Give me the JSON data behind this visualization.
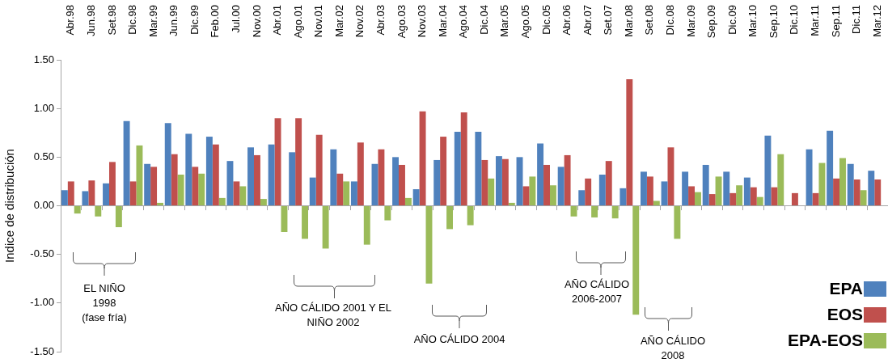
{
  "chart_data": {
    "type": "bar",
    "ylabel": "Indice de distribución",
    "categories": [
      "Abr.98",
      "Jun.98",
      "Set.98",
      "Dic.98",
      "Mar.99",
      "Jun.99",
      "Dic.99",
      "Feb.00",
      "Jul.00",
      "Nov.00",
      "Abr.01",
      "Ago.01",
      "Nov.01",
      "Mar.02",
      "Nov.02",
      "Abr.03",
      "Ago.03",
      "Nov.03",
      "Mar.04",
      "Ago.04",
      "Dic.04",
      "Mar.05",
      "Ago.05",
      "Dic.05",
      "Abr.06",
      "Abr.07",
      "Set.07",
      "Mar.08",
      "Set.08",
      "DIc.08",
      "Mar.09",
      "Sep.09",
      "Dic.09",
      "Mar.10",
      "Sep.10",
      "Dic.10",
      "Mar.11",
      "Sep.11",
      "Dic.11",
      "Mar.12"
    ],
    "series": [
      {
        "name": "EPA",
        "color": "#4f81bd",
        "values": [
          0.16,
          0.15,
          0.23,
          0.87,
          0.43,
          0.85,
          0.74,
          0.71,
          0.46,
          0.6,
          0.63,
          0.55,
          0.29,
          0.58,
          0.25,
          0.43,
          0.5,
          0.17,
          0.47,
          0.76,
          0.76,
          0.51,
          0.5,
          0.64,
          0.4,
          0.16,
          0.32,
          0.18,
          0.35,
          0.25,
          0.35,
          0.42,
          0.35,
          0.29,
          0.72,
          null,
          0.58,
          0.77,
          0.43,
          0.36
        ]
      },
      {
        "name": "EOS",
        "color": "#c0504d",
        "values": [
          0.25,
          0.26,
          0.45,
          0.25,
          0.4,
          0.53,
          0.4,
          0.63,
          0.25,
          0.52,
          0.9,
          0.9,
          0.73,
          0.33,
          0.65,
          0.58,
          0.42,
          0.97,
          0.71,
          0.96,
          0.47,
          0.48,
          0.2,
          0.42,
          0.52,
          0.28,
          0.46,
          1.3,
          0.3,
          0.6,
          0.2,
          0.12,
          0.13,
          0.19,
          0.19,
          0.13,
          0.13,
          0.28,
          0.27,
          0.27
        ]
      },
      {
        "name": "EPA-EOS",
        "color": "#9bbb59",
        "values": [
          -0.08,
          -0.11,
          -0.22,
          0.62,
          0.03,
          0.32,
          0.33,
          0.08,
          0.2,
          0.07,
          -0.27,
          -0.34,
          -0.44,
          0.25,
          -0.4,
          -0.15,
          0.08,
          -0.8,
          -0.24,
          -0.2,
          0.28,
          0.03,
          0.3,
          0.21,
          -0.11,
          -0.12,
          -0.13,
          -1.12,
          0.05,
          -0.34,
          0.14,
          0.3,
          0.21,
          0.09,
          0.53,
          null,
          0.44,
          0.49,
          0.16,
          null
        ]
      }
    ],
    "ylim": [
      -1.5,
      1.5
    ],
    "yticks": [
      {
        "value": -1.5,
        "label": "-1.50"
      },
      {
        "value": -1,
        "label": "-1.00"
      },
      {
        "value": -0.5,
        "label": "-0.50"
      },
      {
        "value": 0,
        "label": "0.00"
      },
      {
        "value": 0.5,
        "label": "0.50"
      },
      {
        "value": 1,
        "label": "1.00"
      },
      {
        "value": 1.5,
        "label": "1.50"
      }
    ],
    "grid": false,
    "legend": "bottom right",
    "ref_lines": [
      {
        "axis": "y",
        "value": 0,
        "color": "#a6a6a6"
      }
    ],
    "annotations": [
      "EL NIÑO\n1998\n(fase fría)",
      "AÑO CÁLIDO 2001  Y EL\nNIÑO 2002",
      "AÑO CÁLIDO 2004",
      "AÑO CÁLIDO\n2006-2007",
      "AÑO CÁLIDO\n2008"
    ]
  }
}
